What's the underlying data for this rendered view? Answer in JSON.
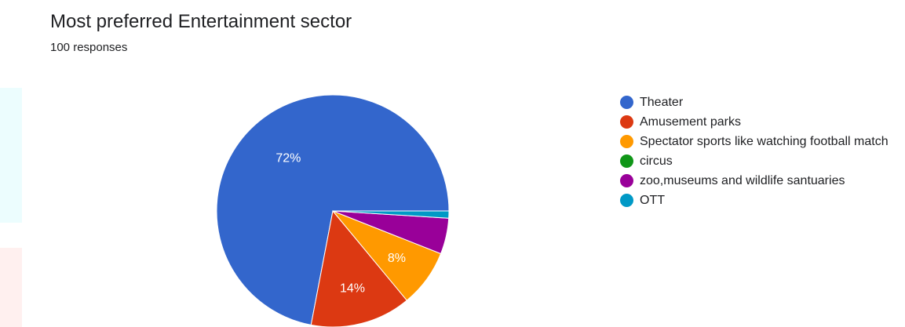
{
  "chart_data": {
    "type": "pie",
    "title": "Most preferred Entertainment sector",
    "subtitle": "100 responses",
    "slices": [
      {
        "name": "Theater",
        "value": 72,
        "label": "72%",
        "color": "#3366cc"
      },
      {
        "name": "Amusement parks",
        "value": 14,
        "label": "14%",
        "color": "#dc3912"
      },
      {
        "name": "Spectator sports like watching football match",
        "value": 8,
        "label": "8%",
        "color": "#ff9900"
      },
      {
        "name": "circus",
        "value": 0,
        "label": "",
        "color": "#109618"
      },
      {
        "name": "zoo,museums and wildlife santuaries",
        "value": 5,
        "label": "",
        "color": "#990099"
      },
      {
        "name": "OTT",
        "value": 1,
        "label": "",
        "color": "#0099c6"
      }
    ],
    "legend_position": "right"
  }
}
